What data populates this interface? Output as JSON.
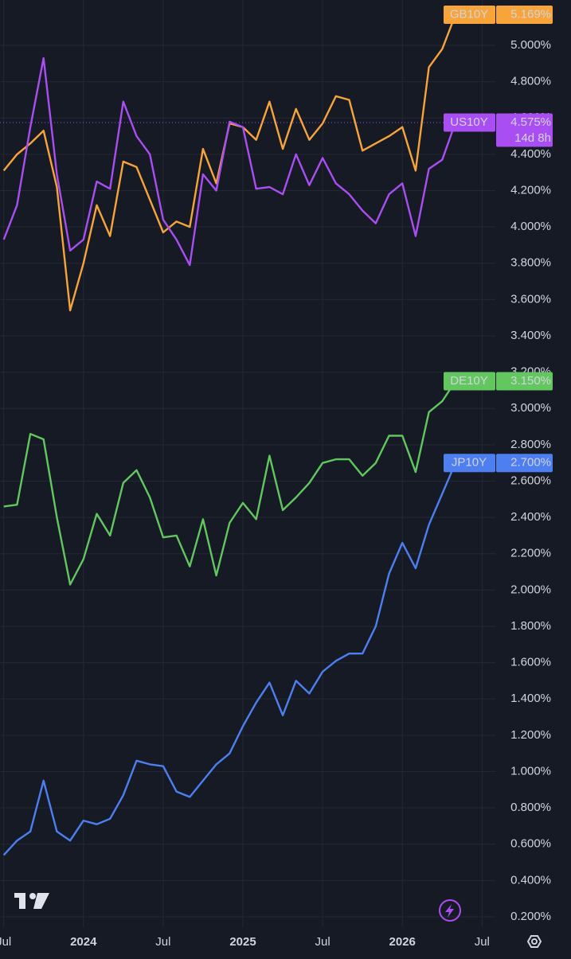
{
  "chart_data": {
    "type": "line",
    "x": [
      "2023-07",
      "2023-08",
      "2023-09",
      "2023-10",
      "2023-11",
      "2023-12",
      "2024-01",
      "2024-02",
      "2024-03",
      "2024-04",
      "2024-05",
      "2024-06",
      "2024-07",
      "2024-08",
      "2024-09",
      "2024-10",
      "2024-11",
      "2024-12",
      "2025-01",
      "2025-02",
      "2025-03",
      "2025-04",
      "2025-05",
      "2025-06",
      "2025-07",
      "2025-08",
      "2025-09",
      "2025-10",
      "2025-11",
      "2025-12",
      "2026-01",
      "2026-02",
      "2026-03",
      "2026-04",
      "2026-05"
    ],
    "series": [
      {
        "name": "GB10Y",
        "color": "#f7a43a",
        "last_value_label": "5.169%",
        "values": [
          4.31,
          4.4,
          4.46,
          4.53,
          4.22,
          3.54,
          3.8,
          4.12,
          3.95,
          4.36,
          4.33,
          4.15,
          3.97,
          4.03,
          4.0,
          4.43,
          4.24,
          4.57,
          4.55,
          4.48,
          4.69,
          4.43,
          4.65,
          4.48,
          4.57,
          4.72,
          4.7,
          4.42,
          4.46,
          4.5,
          4.55,
          4.31,
          4.88,
          4.98,
          5.169
        ]
      },
      {
        "name": "US10Y",
        "color": "#a94ef2",
        "last_value_label": "4.575%",
        "countdown": "14d 8h",
        "values": [
          3.93,
          4.12,
          4.55,
          4.93,
          4.29,
          3.87,
          3.93,
          4.25,
          4.21,
          4.69,
          4.5,
          4.4,
          4.04,
          3.93,
          3.79,
          4.29,
          4.2,
          4.58,
          4.55,
          4.21,
          4.22,
          4.18,
          4.4,
          4.23,
          4.38,
          4.24,
          4.18,
          4.09,
          4.02,
          4.18,
          4.24,
          3.95,
          4.32,
          4.37,
          4.575
        ]
      },
      {
        "name": "DE10Y",
        "color": "#62c75f",
        "last_value_label": "3.150%",
        "values": [
          2.46,
          2.47,
          2.86,
          2.83,
          2.4,
          2.03,
          2.17,
          2.42,
          2.3,
          2.59,
          2.66,
          2.51,
          2.29,
          2.3,
          2.13,
          2.39,
          2.08,
          2.37,
          2.48,
          2.39,
          2.74,
          2.44,
          2.51,
          2.59,
          2.7,
          2.72,
          2.72,
          2.63,
          2.7,
          2.85,
          2.85,
          2.65,
          2.98,
          3.04,
          3.15
        ]
      },
      {
        "name": "JP10Y",
        "color": "#4d7ff0",
        "last_value_label": "2.700%",
        "values": [
          0.54,
          0.62,
          0.67,
          0.95,
          0.67,
          0.62,
          0.73,
          0.71,
          0.74,
          0.87,
          1.06,
          1.04,
          1.03,
          0.89,
          0.86,
          0.95,
          1.04,
          1.1,
          1.25,
          1.38,
          1.49,
          1.31,
          1.5,
          1.43,
          1.55,
          1.61,
          1.65,
          1.65,
          1.8,
          2.09,
          2.26,
          2.12,
          2.36,
          2.53,
          2.7
        ]
      }
    ],
    "xlim": [
      "2023-06",
      "2026-08"
    ],
    "xticks": [
      {
        "value": "2023-07",
        "label": "Jul"
      },
      {
        "value": "2024-01",
        "label": "2024"
      },
      {
        "value": "2024-07",
        "label": "Jul"
      },
      {
        "value": "2025-01",
        "label": "2025"
      },
      {
        "value": "2025-07",
        "label": "Jul"
      },
      {
        "value": "2026-01",
        "label": "2026"
      },
      {
        "value": "2026-07",
        "label": "Jul"
      }
    ],
    "ylim": [
      0.143,
      5.25
    ],
    "yticks": [
      {
        "value": 0.2,
        "label": "0.200%"
      },
      {
        "value": 0.4,
        "label": "0.400%"
      },
      {
        "value": 0.6,
        "label": "0.600%"
      },
      {
        "value": 0.8,
        "label": "0.800%"
      },
      {
        "value": 1.0,
        "label": "1.000%"
      },
      {
        "value": 1.2,
        "label": "1.200%"
      },
      {
        "value": 1.4,
        "label": "1.400%"
      },
      {
        "value": 1.6,
        "label": "1.600%"
      },
      {
        "value": 1.8,
        "label": "1.800%"
      },
      {
        "value": 2.0,
        "label": "2.000%"
      },
      {
        "value": 2.2,
        "label": "2.200%"
      },
      {
        "value": 2.4,
        "label": "2.400%"
      },
      {
        "value": 2.6,
        "label": "2.600%"
      },
      {
        "value": 2.8,
        "label": "2.800%"
      },
      {
        "value": 3.0,
        "label": "3.000%"
      },
      {
        "value": 3.2,
        "label": "3.200%"
      },
      {
        "value": 3.4,
        "label": "3.400%"
      },
      {
        "value": 3.6,
        "label": "3.600%"
      },
      {
        "value": 3.8,
        "label": "3.800%"
      },
      {
        "value": 4.0,
        "label": "4.000%"
      },
      {
        "value": 4.2,
        "label": "4.200%"
      },
      {
        "value": 4.4,
        "label": "4.400%"
      },
      {
        "value": 4.6,
        "label": "4.600%"
      },
      {
        "value": 4.8,
        "label": "4.800%"
      },
      {
        "value": 5.0,
        "label": "5.000%"
      }
    ],
    "grid": true
  }
}
